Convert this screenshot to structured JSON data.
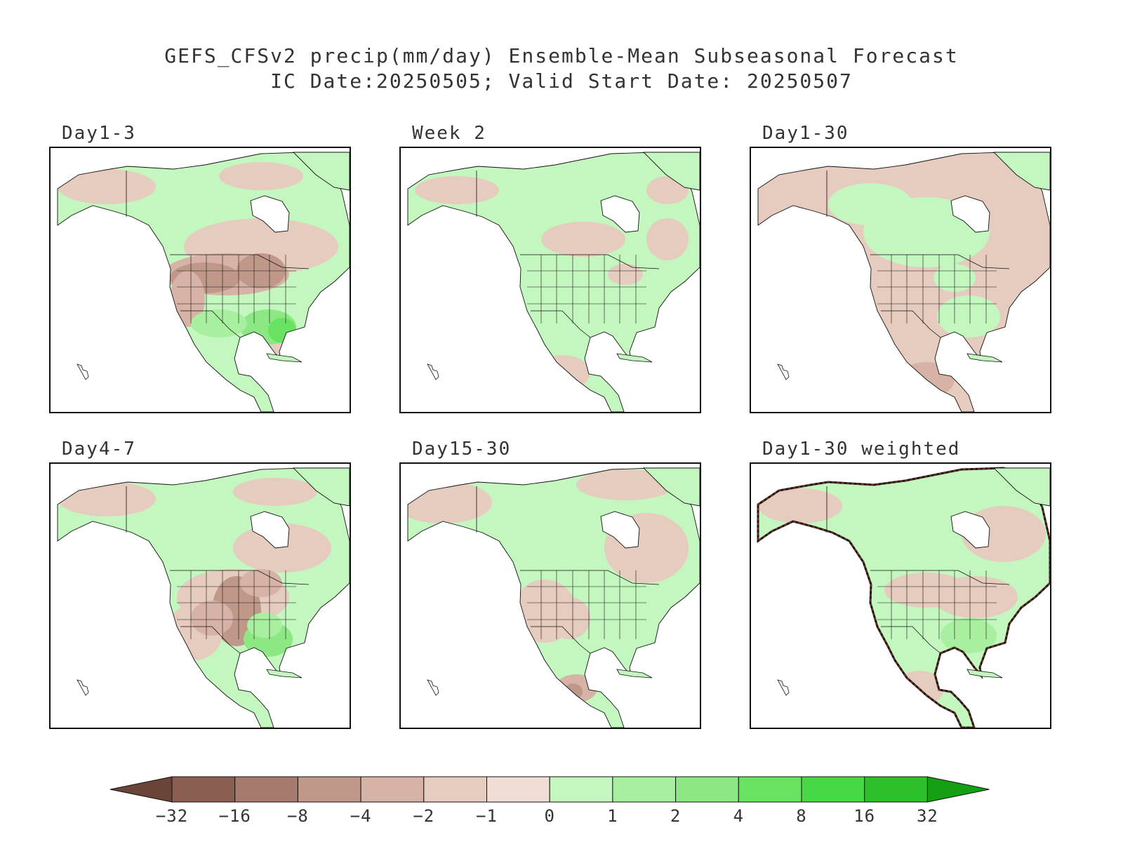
{
  "title": {
    "line1": "GEFS_CFSv2 precip(mm/day) Ensemble-Mean Subseasonal Forecast",
    "line2": "IC Date:20250505; Valid Start Date: 20250507"
  },
  "panels": [
    {
      "id": "day1-3",
      "label": "Day1-3",
      "pattern": "dry-central"
    },
    {
      "id": "week2",
      "label": "Week 2",
      "pattern": "wet"
    },
    {
      "id": "day1-30",
      "label": "Day1-30",
      "pattern": "mixed-dry"
    },
    {
      "id": "day4-7",
      "label": "Day4-7",
      "pattern": "dry-plains"
    },
    {
      "id": "day15-30",
      "label": "Day15-30",
      "pattern": "mixed-west-dry"
    },
    {
      "id": "day1-30-weighted",
      "label": "Day1-30 weighted",
      "pattern": "weighted"
    }
  ],
  "legend": {
    "levels": [
      "-32",
      "-16",
      "-8",
      "-4",
      "-2",
      "-1",
      "0",
      "1",
      "2",
      "4",
      "8",
      "16",
      "32"
    ],
    "colors": [
      "#6b4438",
      "#8a5f52",
      "#a67b6d",
      "#bf988a",
      "#d6b3a6",
      "#e6cbbf",
      "#f0ddd5",
      "#c3f7bf",
      "#a8ef9f",
      "#8ce882",
      "#69e262",
      "#47d945",
      "#2dc02b",
      "#159f15"
    ]
  }
}
